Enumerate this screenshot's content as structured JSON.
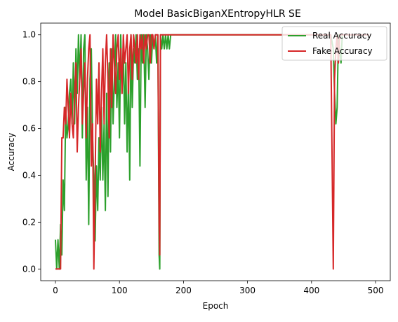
{
  "chart_data": {
    "type": "line",
    "title": "Model BasicBiganXEntropyHLR SE",
    "xlabel": "Epoch",
    "ylabel": "Accuracy",
    "xlim": [
      -23,
      523
    ],
    "ylim": [
      -0.05,
      1.05
    ],
    "xticks": [
      0,
      100,
      200,
      300,
      400,
      500
    ],
    "xtick_labels": [
      "0",
      "100",
      "200",
      "300",
      "400",
      "500"
    ],
    "yticks": [
      0.0,
      0.2,
      0.4,
      0.6,
      0.8,
      1.0
    ],
    "ytick_labels": [
      "0.0",
      "0.2",
      "0.4",
      "0.6",
      "0.8",
      "1.0"
    ],
    "grid": false,
    "legend_position": "top-right",
    "series": [
      {
        "name": "Real Accuracy",
        "color": "#2ca02c",
        "x": [
          0,
          2,
          4,
          6,
          8,
          10,
          12,
          14,
          16,
          18,
          20,
          22,
          24,
          26,
          28,
          30,
          32,
          34,
          36,
          38,
          40,
          42,
          44,
          46,
          48,
          50,
          52,
          54,
          56,
          58,
          60,
          62,
          64,
          66,
          68,
          70,
          72,
          74,
          76,
          78,
          80,
          82,
          84,
          86,
          88,
          90,
          92,
          94,
          96,
          98,
          100,
          102,
          104,
          106,
          108,
          110,
          112,
          114,
          116,
          118,
          120,
          122,
          124,
          126,
          128,
          130,
          132,
          134,
          136,
          138,
          140,
          142,
          144,
          146,
          148,
          150,
          152,
          154,
          156,
          158,
          160,
          162,
          163,
          164,
          166,
          168,
          170,
          172,
          174,
          176,
          178,
          180,
          200,
          250,
          300,
          350,
          400,
          430,
          434,
          436,
          438,
          440,
          442,
          444,
          446,
          448,
          450,
          460,
          470,
          480,
          490
        ],
        "y": [
          0.125,
          0.0,
          0.125,
          0.0,
          0.19,
          0.06,
          0.38,
          0.25,
          0.69,
          0.56,
          0.62,
          0.75,
          0.81,
          0.62,
          0.88,
          0.62,
          0.94,
          0.75,
          1.0,
          0.81,
          1.0,
          0.56,
          0.94,
          1.0,
          0.38,
          0.69,
          0.19,
          0.81,
          0.94,
          0.56,
          0.38,
          0.12,
          0.44,
          0.25,
          0.56,
          0.38,
          0.69,
          0.38,
          0.62,
          0.25,
          0.75,
          0.31,
          0.88,
          0.5,
          0.94,
          0.62,
          0.81,
          1.0,
          0.69,
          0.88,
          0.56,
          1.0,
          0.75,
          0.94,
          0.62,
          0.88,
          0.5,
          0.81,
          0.38,
          1.0,
          0.69,
          0.94,
          0.88,
          1.0,
          0.81,
          0.94,
          0.44,
          1.0,
          0.88,
          1.0,
          0.69,
          1.0,
          0.94,
          0.81,
          1.0,
          0.88,
          1.0,
          0.94,
          1.0,
          0.88,
          1.0,
          0.06,
          0.0,
          1.0,
          0.94,
          1.0,
          0.94,
          1.0,
          0.94,
          1.0,
          0.94,
          1.0,
          1.0,
          1.0,
          1.0,
          1.0,
          1.0,
          1.0,
          0.94,
          0.75,
          0.62,
          0.69,
          1.0,
          0.94,
          0.88,
          1.0,
          1.0,
          1.0,
          1.0,
          1.0,
          1.0
        ]
      },
      {
        "name": "Fake Accuracy",
        "color": "#d62728",
        "x": [
          0,
          2,
          4,
          6,
          8,
          10,
          12,
          14,
          16,
          18,
          20,
          22,
          24,
          26,
          28,
          30,
          32,
          34,
          36,
          38,
          40,
          42,
          44,
          46,
          48,
          50,
          52,
          54,
          56,
          58,
          60,
          62,
          64,
          66,
          68,
          70,
          72,
          74,
          76,
          78,
          80,
          82,
          84,
          86,
          88,
          90,
          92,
          94,
          96,
          98,
          100,
          102,
          104,
          106,
          108,
          110,
          112,
          114,
          116,
          118,
          120,
          122,
          124,
          126,
          128,
          130,
          132,
          134,
          136,
          138,
          140,
          142,
          144,
          146,
          148,
          150,
          152,
          154,
          156,
          158,
          160,
          162,
          163,
          164,
          166,
          168,
          170,
          172,
          174,
          176,
          178,
          180,
          200,
          250,
          300,
          350,
          400,
          430,
          434,
          436,
          438,
          440,
          442,
          444,
          446,
          448,
          450,
          460,
          470,
          480,
          490
        ],
        "y": [
          0.0,
          0.0,
          0.0,
          0.0,
          0.0,
          0.56,
          0.56,
          0.69,
          0.62,
          0.81,
          0.69,
          0.56,
          0.75,
          0.62,
          0.56,
          0.75,
          0.88,
          0.5,
          0.69,
          0.81,
          0.94,
          0.62,
          0.75,
          0.88,
          0.56,
          0.81,
          0.94,
          1.0,
          0.44,
          0.62,
          0.0,
          0.38,
          0.81,
          0.62,
          0.88,
          0.5,
          0.75,
          0.94,
          0.62,
          0.88,
          1.0,
          0.81,
          0.56,
          0.94,
          0.69,
          1.0,
          0.88,
          0.75,
          0.94,
          1.0,
          0.81,
          0.94,
          0.75,
          1.0,
          0.88,
          0.94,
          1.0,
          0.75,
          0.94,
          1.0,
          0.81,
          1.0,
          0.94,
          0.88,
          1.0,
          0.81,
          1.0,
          0.94,
          1.0,
          0.88,
          1.0,
          0.94,
          1.0,
          1.0,
          0.88,
          1.0,
          1.0,
          0.94,
          1.0,
          1.0,
          1.0,
          0.19,
          0.06,
          1.0,
          1.0,
          1.0,
          1.0,
          1.0,
          1.0,
          1.0,
          1.0,
          1.0,
          1.0,
          1.0,
          1.0,
          1.0,
          1.0,
          1.0,
          0.0,
          0.81,
          0.94,
          1.0,
          0.88,
          1.0,
          1.0,
          1.0,
          1.0,
          1.0,
          1.0,
          1.0,
          1.0
        ]
      }
    ]
  }
}
